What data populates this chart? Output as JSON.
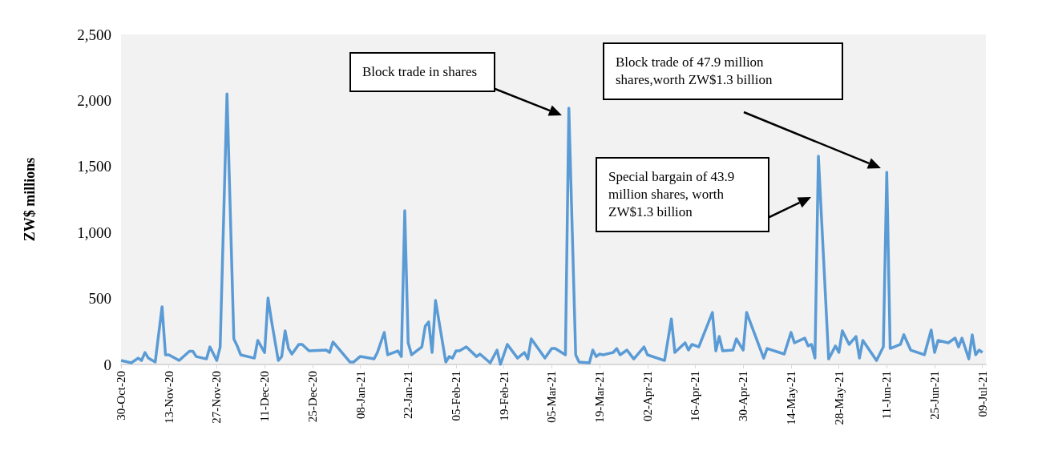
{
  "chart_data": {
    "type": "line",
    "ylabel": "ZW$ millions",
    "x": [
      "2020-10-30",
      "2020-11-02",
      "2020-11-04",
      "2020-11-05",
      "2020-11-06",
      "2020-11-07",
      "2020-11-09",
      "2020-11-11",
      "2020-11-12",
      "2020-11-13",
      "2020-11-16",
      "2020-11-19",
      "2020-11-20",
      "2020-11-21",
      "2020-11-24",
      "2020-11-25",
      "2020-11-27",
      "2020-11-28",
      "2020-11-30",
      "2020-12-02",
      "2020-12-03",
      "2020-12-04",
      "2020-12-08",
      "2020-12-09",
      "2020-12-11",
      "2020-12-12",
      "2020-12-13",
      "2020-12-15",
      "2020-12-16",
      "2020-12-17",
      "2020-12-18",
      "2020-12-19",
      "2020-12-21",
      "2020-12-22",
      "2020-12-24",
      "2020-12-29",
      "2020-12-30",
      "2020-12-31",
      "2021-01-05",
      "2021-01-06",
      "2021-01-08",
      "2021-01-12",
      "2021-01-13",
      "2021-01-15",
      "2021-01-16",
      "2021-01-19",
      "2021-01-20",
      "2021-01-21",
      "2021-01-22",
      "2021-01-23",
      "2021-01-26",
      "2021-01-27",
      "2021-01-28",
      "2021-01-29",
      "2021-01-30",
      "2021-02-02",
      "2021-02-03",
      "2021-02-04",
      "2021-02-05",
      "2021-02-06",
      "2021-02-08",
      "2021-02-11",
      "2021-02-12",
      "2021-02-15",
      "2021-02-17",
      "2021-02-18",
      "2021-02-20",
      "2021-02-23",
      "2021-02-25",
      "2021-02-26",
      "2021-02-27",
      "2021-03-03",
      "2021-03-05",
      "2021-03-06",
      "2021-03-09",
      "2021-03-10",
      "2021-03-12",
      "2021-03-13",
      "2021-03-16",
      "2021-03-17",
      "2021-03-18",
      "2021-03-19",
      "2021-03-20",
      "2021-03-23",
      "2021-03-24",
      "2021-03-25",
      "2021-03-27",
      "2021-03-29",
      "2021-04-01",
      "2021-04-02",
      "2021-04-07",
      "2021-04-09",
      "2021-04-10",
      "2021-04-13",
      "2021-04-14",
      "2021-04-15",
      "2021-04-17",
      "2021-04-21",
      "2021-04-22",
      "2021-04-23",
      "2021-04-24",
      "2021-04-27",
      "2021-04-28",
      "2021-04-30",
      "2021-05-01",
      "2021-05-06",
      "2021-05-07",
      "2021-05-12",
      "2021-05-14",
      "2021-05-15",
      "2021-05-18",
      "2021-05-19",
      "2021-05-20",
      "2021-05-21",
      "2021-05-22",
      "2021-05-25",
      "2021-05-27",
      "2021-05-28",
      "2021-05-29",
      "2021-05-31",
      "2021-06-02",
      "2021-06-03",
      "2021-06-04",
      "2021-06-08",
      "2021-06-10",
      "2021-06-11",
      "2021-06-12",
      "2021-06-15",
      "2021-06-16",
      "2021-06-18",
      "2021-06-22",
      "2021-06-24",
      "2021-06-25",
      "2021-06-26",
      "2021-06-29",
      "2021-07-01",
      "2021-07-02",
      "2021-07-03",
      "2021-07-05",
      "2021-07-06",
      "2021-07-07",
      "2021-07-08",
      "2021-07-09"
    ],
    "series": [
      {
        "color": "#5b9bd5",
        "values": [
          30,
          12,
          48,
          30,
          90,
          48,
          18,
          437,
          73,
          73,
          30,
          100,
          100,
          60,
          42,
          133,
          30,
          133,
          2050,
          194,
          140,
          73,
          48,
          182,
          90,
          504,
          334,
          30,
          60,
          255,
          121,
          79,
          152,
          152,
          103,
          109,
          91,
          170,
          18,
          18,
          61,
          42,
          91,
          243,
          73,
          103,
          60,
          1165,
          164,
          73,
          133,
          291,
          322,
          91,
          485,
          18,
          60,
          48,
          103,
          103,
          133,
          60,
          79,
          12,
          109,
          0,
          152,
          48,
          91,
          42,
          194,
          48,
          121,
          121,
          73,
          1942,
          73,
          18,
          12,
          109,
          60,
          79,
          73,
          91,
          121,
          73,
          109,
          42,
          133,
          73,
          30,
          345,
          91,
          164,
          109,
          152,
          133,
          394,
          103,
          212,
          103,
          109,
          194,
          109,
          394,
          48,
          121,
          79,
          243,
          164,
          200,
          140,
          152,
          48,
          1578,
          42,
          140,
          91,
          255,
          152,
          212,
          48,
          182,
          30,
          133,
          1456,
          121,
          152,
          225,
          109,
          73,
          261,
          91,
          182,
          164,
          200,
          133,
          200,
          42,
          225,
          73,
          109,
          91
        ]
      }
    ],
    "xlim": [
      "2020-10-30",
      "2021-07-10"
    ],
    "xticks": [
      {
        "value": "2020-10-30",
        "label": "30-Oct-20"
      },
      {
        "value": "2020-11-13",
        "label": "13-Nov-20"
      },
      {
        "value": "2020-11-27",
        "label": "27-Nov-20"
      },
      {
        "value": "2020-12-11",
        "label": "11-Dec-20"
      },
      {
        "value": "2020-12-25",
        "label": "25-Dec-20"
      },
      {
        "value": "2021-01-08",
        "label": "08-Jan-21"
      },
      {
        "value": "2021-01-22",
        "label": "22-Jan-21"
      },
      {
        "value": "2021-02-05",
        "label": "05-Feb-21"
      },
      {
        "value": "2021-02-19",
        "label": "19-Feb-21"
      },
      {
        "value": "2021-03-05",
        "label": "05-Mar-21"
      },
      {
        "value": "2021-03-19",
        "label": "19-Mar-21"
      },
      {
        "value": "2021-04-02",
        "label": "02-Apr-21"
      },
      {
        "value": "2021-04-16",
        "label": "16-Apr-21"
      },
      {
        "value": "2021-04-30",
        "label": "30-Apr-21"
      },
      {
        "value": "2021-05-14",
        "label": "14-May-21"
      },
      {
        "value": "2021-05-28",
        "label": "28-May-21"
      },
      {
        "value": "2021-06-11",
        "label": "11-Jun-21"
      },
      {
        "value": "2021-06-25",
        "label": "25-Jun-21"
      },
      {
        "value": "2021-07-09",
        "label": "09-Jul-21"
      }
    ],
    "ylim": [
      0,
      2500
    ],
    "yticks": [
      0,
      {
        "value": 500,
        "label": "500"
      },
      {
        "value": 1000,
        "label": "1,000"
      },
      {
        "value": 1500,
        "label": "1,500"
      },
      {
        "value": 2000,
        "label": "2,000"
      },
      {
        "value": 2500,
        "label": "2,500"
      }
    ],
    "annotations": [
      "Block trade in shares",
      "Special bargain of 43.9 million shares, worth ZW$1.3 billion",
      "Block trade of 47.9 million shares,worth ZW$1.3 billion"
    ]
  }
}
